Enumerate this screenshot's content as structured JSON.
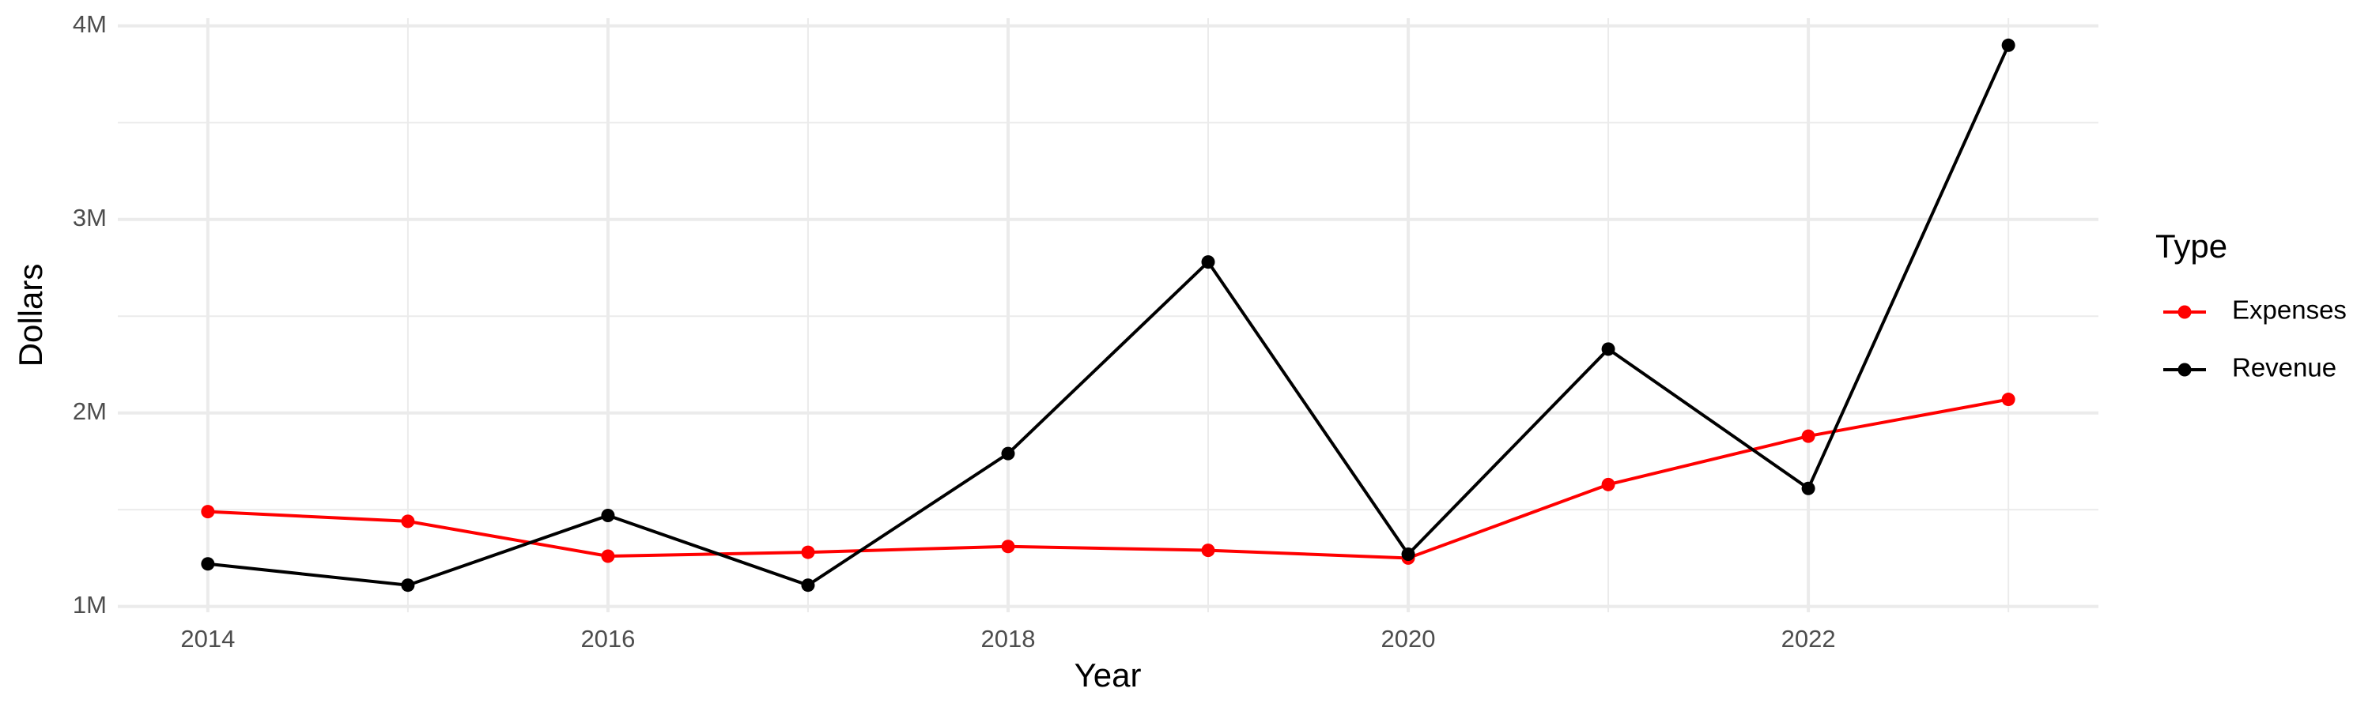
{
  "chart_data": {
    "type": "line",
    "x_label": "Year",
    "y_label": "Dollars",
    "legend_title": "Type",
    "x": [
      2014,
      2015,
      2016,
      2017,
      2018,
      2019,
      2020,
      2021,
      2022,
      2023
    ],
    "series": [
      {
        "name": "Expenses",
        "color": "#ff0000",
        "values": [
          1490000,
          1440000,
          1260000,
          1280000,
          1310000,
          1290000,
          1250000,
          1630000,
          1880000,
          2070000
        ]
      },
      {
        "name": "Revenue",
        "color": "#000000",
        "values": [
          1220000,
          1110000,
          1470000,
          1110000,
          1790000,
          2780000,
          1270000,
          2330000,
          1610000,
          3900000
        ]
      }
    ],
    "xlim": [
      2013.55,
      2023.45
    ],
    "xticks": [
      2014,
      2016,
      2018,
      2020,
      2022
    ],
    "ylim": [
      970000,
      4040000
    ],
    "yticks": [
      {
        "value": 1000000,
        "label": "1M"
      },
      {
        "value": 2000000,
        "label": "2M"
      },
      {
        "value": 3000000,
        "label": "3M"
      },
      {
        "value": 4000000,
        "label": "4M"
      }
    ],
    "grid": true,
    "legend_position": "right"
  }
}
